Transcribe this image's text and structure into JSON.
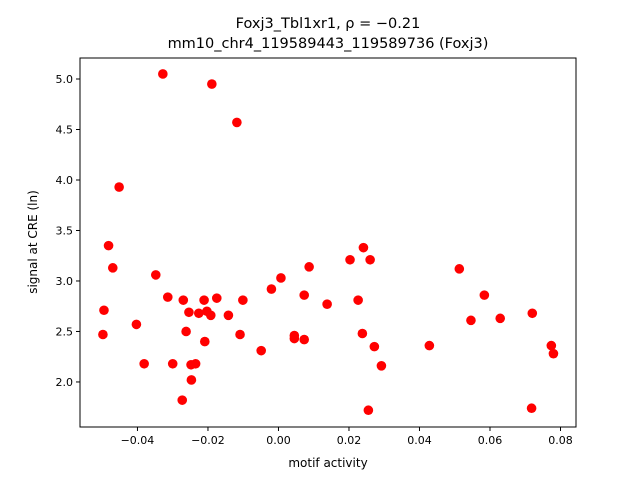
{
  "chart_data": {
    "type": "scatter",
    "title_line1": "Foxj3_Tbl1xr1, ρ = −0.21",
    "title_line2": "mm10_chr4_119589443_119589736 (Foxj3)",
    "xlabel": "motif activity",
    "ylabel": "signal at CRE (ln)",
    "xlim": [
      -0.0563,
      0.0844
    ],
    "ylim": [
      1.554,
      5.208
    ],
    "xticks": [
      -0.04,
      -0.02,
      0.0,
      0.02,
      0.04,
      0.06,
      0.08
    ],
    "xtick_labels": [
      "−0.04",
      "−0.02",
      "0.00",
      "0.02",
      "0.04",
      "0.06",
      "0.08"
    ],
    "yticks": [
      2.0,
      2.5,
      3.0,
      3.5,
      4.0,
      4.5,
      5.0
    ],
    "ytick_labels": [
      "2.0",
      "2.5",
      "3.0",
      "3.5",
      "4.0",
      "4.5",
      "5.0"
    ],
    "grid": false,
    "marker_color": "#ff0000",
    "points": [
      [
        -0.0498,
        2.47
      ],
      [
        -0.0495,
        2.71
      ],
      [
        -0.0482,
        3.35
      ],
      [
        -0.047,
        3.13
      ],
      [
        -0.0452,
        3.93
      ],
      [
        -0.0403,
        2.57
      ],
      [
        -0.0381,
        2.18
      ],
      [
        -0.0348,
        3.06
      ],
      [
        -0.0328,
        5.05
      ],
      [
        -0.0314,
        2.84
      ],
      [
        -0.03,
        2.18
      ],
      [
        -0.0273,
        1.82
      ],
      [
        -0.027,
        2.81
      ],
      [
        -0.0262,
        2.5
      ],
      [
        -0.0254,
        2.69
      ],
      [
        -0.0248,
        2.17
      ],
      [
        -0.0247,
        2.02
      ],
      [
        -0.0235,
        2.18
      ],
      [
        -0.0226,
        2.68
      ],
      [
        -0.0211,
        2.81
      ],
      [
        -0.0209,
        2.4
      ],
      [
        -0.0203,
        2.7
      ],
      [
        -0.0192,
        2.66
      ],
      [
        -0.0189,
        4.95
      ],
      [
        -0.0175,
        2.83
      ],
      [
        -0.0142,
        2.66
      ],
      [
        -0.0118,
        4.57
      ],
      [
        -0.0109,
        2.47
      ],
      [
        -0.0101,
        2.81
      ],
      [
        -0.0049,
        2.31
      ],
      [
        -0.002,
        2.92
      ],
      [
        0.0007,
        3.03
      ],
      [
        0.0045,
        2.46
      ],
      [
        0.0045,
        2.43
      ],
      [
        0.0073,
        2.86
      ],
      [
        0.0073,
        2.42
      ],
      [
        0.0087,
        3.14
      ],
      [
        0.0138,
        2.77
      ],
      [
        0.0203,
        3.21
      ],
      [
        0.0226,
        2.81
      ],
      [
        0.0238,
        2.48
      ],
      [
        0.0241,
        3.33
      ],
      [
        0.0255,
        1.72
      ],
      [
        0.026,
        3.21
      ],
      [
        0.0272,
        2.35
      ],
      [
        0.0292,
        2.16
      ],
      [
        0.0428,
        2.36
      ],
      [
        0.0513,
        3.12
      ],
      [
        0.0546,
        2.61
      ],
      [
        0.0584,
        2.86
      ],
      [
        0.0629,
        2.63
      ],
      [
        0.0718,
        1.74
      ],
      [
        0.072,
        2.68
      ],
      [
        0.0774,
        2.36
      ],
      [
        0.078,
        2.28
      ]
    ]
  }
}
